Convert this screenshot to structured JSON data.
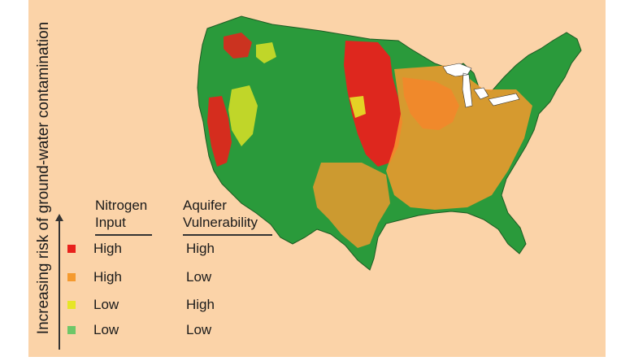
{
  "figure": {
    "side_label": "Increasing risk of ground-water contamination"
  },
  "legend": {
    "header_nitrogen": [
      "Nitrogen",
      "Input"
    ],
    "header_aquifer": [
      "Aquifer",
      "Vulnerability"
    ],
    "rows": [
      {
        "nitrogen": "High",
        "aquifer": "High",
        "color": "#e8211c"
      },
      {
        "nitrogen": "High",
        "aquifer": "Low",
        "color": "#f59a2e"
      },
      {
        "nitrogen": "Low",
        "aquifer": "High",
        "color": "#e6e526"
      },
      {
        "nitrogen": "Low",
        "aquifer": "Low",
        "color": "#6ec768"
      }
    ]
  },
  "map": {
    "land_color": "#2a9a3b",
    "background_color": "#fbd3a8",
    "lake_color": "#ffffff"
  }
}
